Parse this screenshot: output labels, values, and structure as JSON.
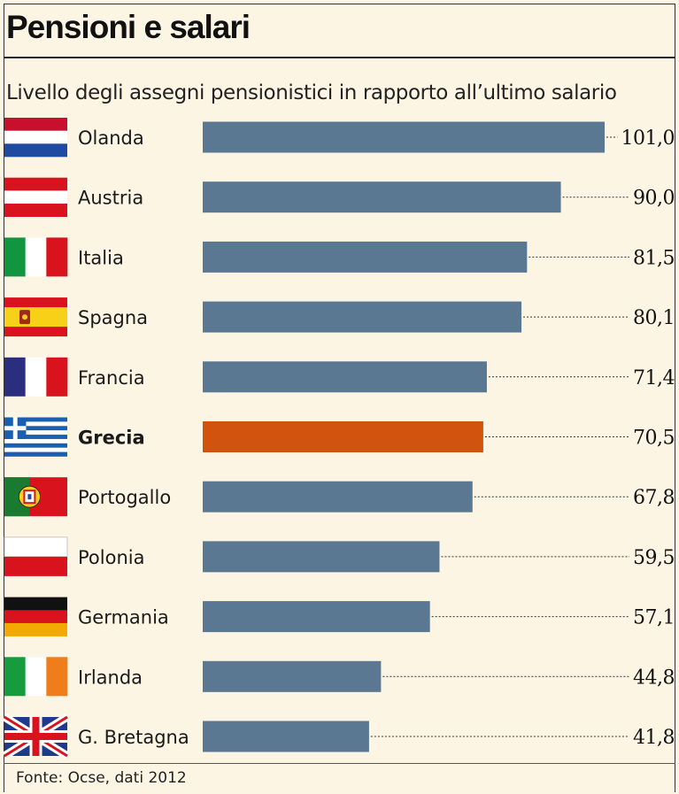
{
  "chart_data": {
    "type": "bar",
    "orientation": "horizontal",
    "title": "Pensioni e salari",
    "subtitle": "Livello degli assegni pensionistici in rapporto all’ultimo salario",
    "source": "Fonte: Ocse, dati 2012",
    "xlim": [
      0,
      101
    ],
    "categories": [
      "Olanda",
      "Austria",
      "Italia",
      "Spagna",
      "Francia",
      "Grecia",
      "Portogallo",
      "Polonia",
      "Germania",
      "Irlanda",
      "G. Bretagna"
    ],
    "values": [
      101.0,
      90.0,
      81.5,
      80.1,
      71.4,
      70.5,
      67.8,
      59.5,
      57.1,
      44.8,
      41.8
    ],
    "value_labels": [
      "101,0",
      "90,0",
      "81,5",
      "80,1",
      "71,4",
      "70,5",
      "67,8",
      "59,5",
      "57,1",
      "44,8",
      "41,8"
    ],
    "highlight": "Grecia",
    "bar_color": "#5a7891",
    "highlight_color": "#d2530d",
    "flags": [
      "flag-netherlands",
      "flag-austria",
      "flag-italy",
      "flag-spain",
      "flag-france",
      "flag-greece",
      "flag-portugal",
      "flag-poland",
      "flag-germany",
      "flag-ireland",
      "flag-united-kingdom"
    ]
  }
}
